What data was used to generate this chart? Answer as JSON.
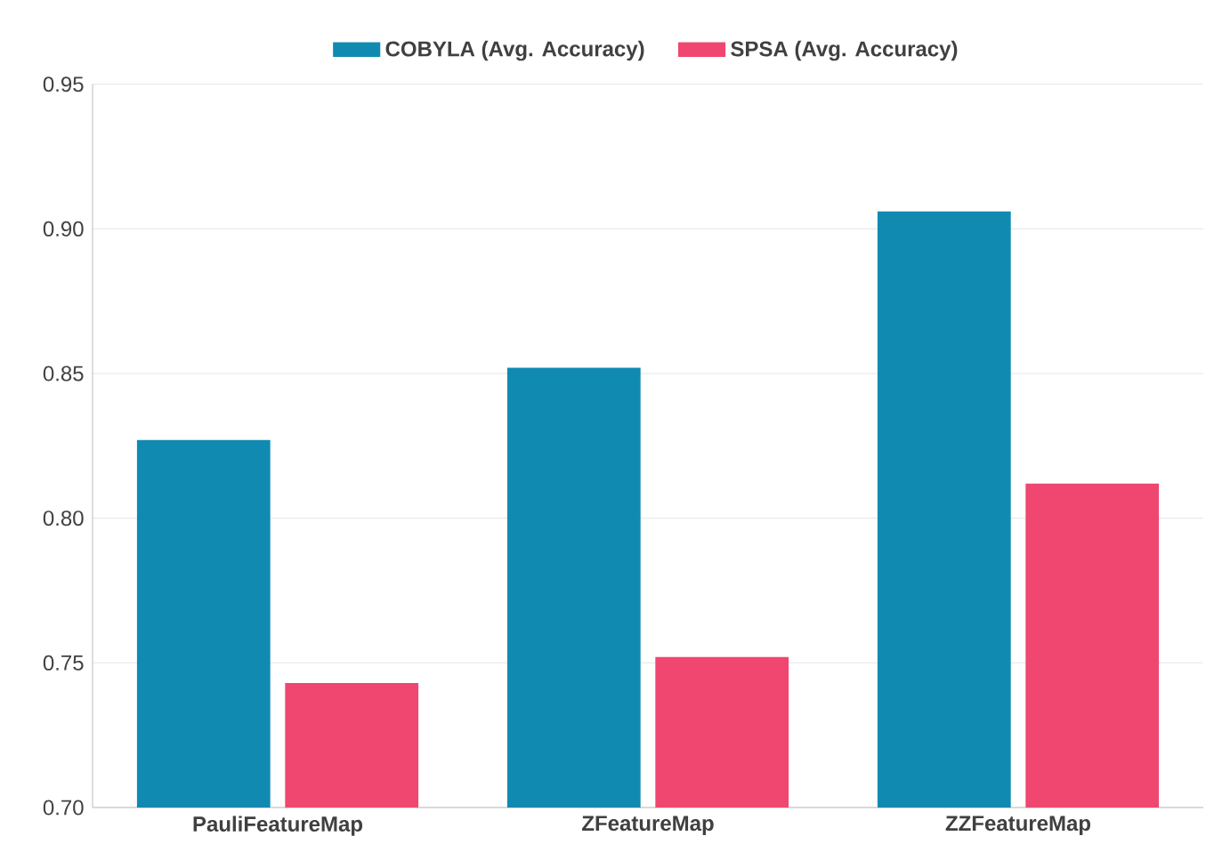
{
  "chart_data": {
    "type": "bar",
    "categories": [
      "PauliFeatureMap",
      "ZFeatureMap",
      "ZZFeatureMap"
    ],
    "series": [
      {
        "name": "COBYLA (Avg. Accuracy)",
        "color": "#118ab2",
        "values": [
          0.827,
          0.852,
          0.906
        ]
      },
      {
        "name": "SPSA (Avg. Accuracy)",
        "color": "#ef476f",
        "values": [
          0.743,
          0.752,
          0.812
        ]
      }
    ],
    "ylim": [
      0.7,
      0.95
    ],
    "yticks": [
      {
        "value": 0.7,
        "label": "0.70"
      },
      {
        "value": 0.75,
        "label": "0.75"
      },
      {
        "value": 0.8,
        "label": "0.80"
      },
      {
        "value": 0.85,
        "label": "0.85"
      },
      {
        "value": 0.9,
        "label": "0.90"
      },
      {
        "value": 0.95,
        "label": "0.95"
      }
    ],
    "grid": "y",
    "legend": "top"
  }
}
